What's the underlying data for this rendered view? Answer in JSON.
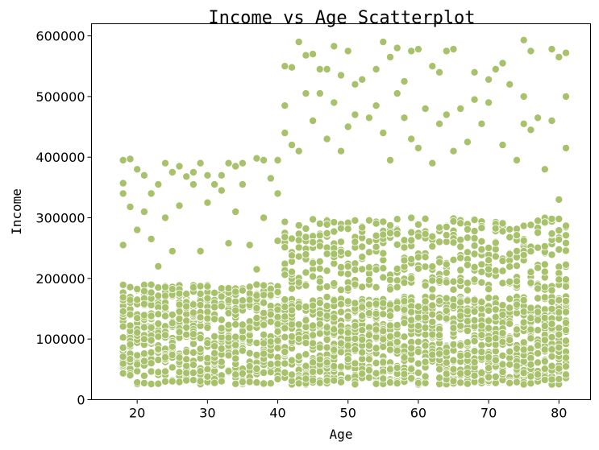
{
  "chart_data": {
    "type": "scatter",
    "title": "Income vs Age Scatterplot",
    "xlabel": "Age",
    "ylabel": "Income",
    "xlim": [
      13.5,
      84.5
    ],
    "ylim": [
      0,
      620000
    ],
    "x_ticks": [
      20,
      30,
      40,
      50,
      60,
      70,
      80
    ],
    "y_ticks": [
      0,
      100000,
      200000,
      300000,
      400000,
      500000,
      600000
    ],
    "marker_color": "#a8c16b",
    "marker_edge_color": "#ffffff",
    "x_range": [
      18,
      81
    ],
    "series": [
      {
        "points": [
          [
            18,
            395000
          ],
          [
            18,
            340000
          ],
          [
            18,
            357000
          ],
          [
            18,
            255000
          ],
          [
            19,
            397000
          ],
          [
            19,
            318000
          ],
          [
            20,
            380000
          ],
          [
            20,
            280000
          ],
          [
            21,
            310000
          ],
          [
            21,
            370000
          ],
          [
            22,
            265000
          ],
          [
            22,
            340000
          ],
          [
            23,
            355000
          ],
          [
            23,
            220000
          ],
          [
            24,
            390000
          ],
          [
            24,
            300000
          ],
          [
            25,
            375000
          ],
          [
            25,
            245000
          ],
          [
            26,
            385000
          ],
          [
            26,
            320000
          ],
          [
            27,
            368000
          ],
          [
            28,
            355000
          ],
          [
            28,
            375000
          ],
          [
            29,
            245000
          ],
          [
            29,
            390000
          ],
          [
            30,
            370000
          ],
          [
            30,
            325000
          ],
          [
            31,
            355000
          ],
          [
            32,
            370000
          ],
          [
            32,
            345000
          ],
          [
            33,
            390000
          ],
          [
            33,
            258000
          ],
          [
            34,
            385000
          ],
          [
            34,
            310000
          ],
          [
            35,
            390000
          ],
          [
            35,
            355000
          ],
          [
            36,
            255000
          ],
          [
            37,
            398000
          ],
          [
            37,
            215000
          ],
          [
            38,
            395000
          ],
          [
            38,
            300000
          ],
          [
            39,
            365000
          ],
          [
            40,
            395000
          ],
          [
            40,
            340000
          ],
          [
            40,
            262000
          ],
          [
            41,
            550000
          ],
          [
            41,
            485000
          ],
          [
            41,
            440000
          ],
          [
            42,
            548000
          ],
          [
            42,
            420000
          ],
          [
            43,
            590000
          ],
          [
            43,
            410000
          ],
          [
            44,
            568000
          ],
          [
            44,
            505000
          ],
          [
            45,
            570000
          ],
          [
            45,
            460000
          ],
          [
            46,
            505000
          ],
          [
            46,
            545000
          ],
          [
            47,
            545000
          ],
          [
            47,
            430000
          ],
          [
            48,
            583000
          ],
          [
            48,
            490000
          ],
          [
            49,
            535000
          ],
          [
            49,
            410000
          ],
          [
            50,
            575000
          ],
          [
            50,
            450000
          ],
          [
            51,
            520000
          ],
          [
            51,
            470000
          ],
          [
            52,
            528000
          ],
          [
            53,
            465000
          ],
          [
            54,
            545000
          ],
          [
            54,
            485000
          ],
          [
            55,
            590000
          ],
          [
            55,
            440000
          ],
          [
            56,
            565000
          ],
          [
            56,
            395000
          ],
          [
            57,
            580000
          ],
          [
            57,
            505000
          ],
          [
            58,
            525000
          ],
          [
            58,
            465000
          ],
          [
            59,
            575000
          ],
          [
            59,
            430000
          ],
          [
            60,
            578000
          ],
          [
            60,
            415000
          ],
          [
            61,
            480000
          ],
          [
            62,
            550000
          ],
          [
            62,
            390000
          ],
          [
            63,
            540000
          ],
          [
            63,
            455000
          ],
          [
            64,
            575000
          ],
          [
            64,
            470000
          ],
          [
            65,
            578000
          ],
          [
            65,
            410000
          ],
          [
            66,
            480000
          ],
          [
            67,
            425000
          ],
          [
            68,
            540000
          ],
          [
            68,
            495000
          ],
          [
            69,
            455000
          ],
          [
            70,
            528000
          ],
          [
            70,
            490000
          ],
          [
            71,
            545000
          ],
          [
            72,
            555000
          ],
          [
            72,
            420000
          ],
          [
            73,
            520000
          ],
          [
            74,
            395000
          ],
          [
            75,
            593000
          ],
          [
            75,
            500000
          ],
          [
            75,
            455000
          ],
          [
            76,
            575000
          ],
          [
            76,
            445000
          ],
          [
            77,
            465000
          ],
          [
            78,
            380000
          ],
          [
            79,
            578000
          ],
          [
            79,
            460000
          ],
          [
            80,
            565000
          ],
          [
            80,
            330000
          ],
          [
            81,
            572000
          ],
          [
            81,
            500000
          ],
          [
            81,
            415000
          ]
        ]
      }
    ]
  }
}
